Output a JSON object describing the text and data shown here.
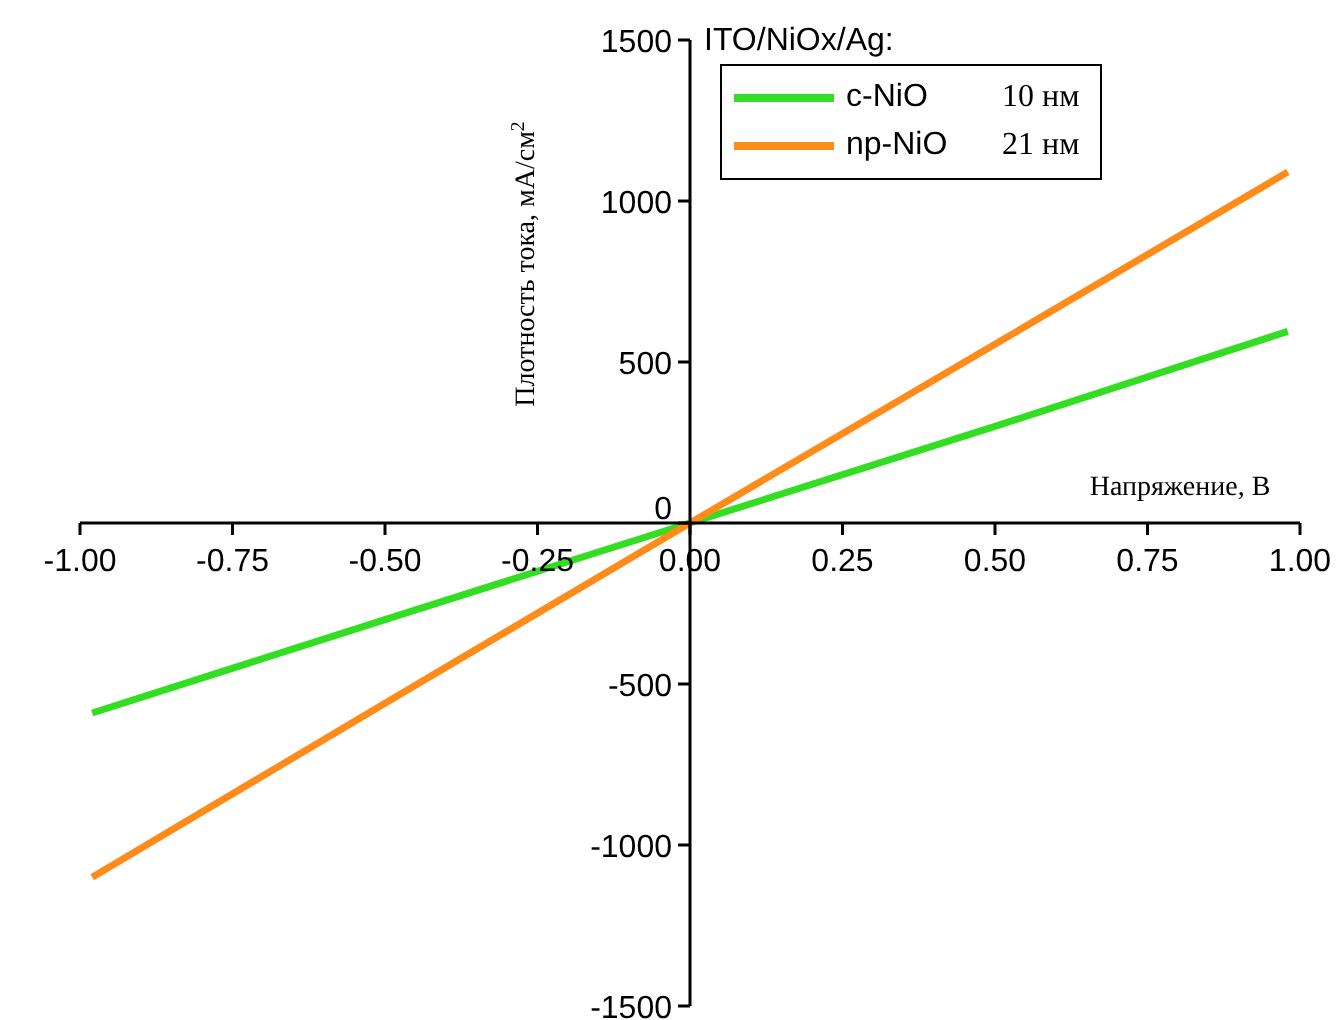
{
  "chart_data": {
    "type": "line",
    "xlabel": "Напряжение, В",
    "ylabel": "Плотность тока, мА/см$^{2}$",
    "legend_title": "ITO/NiOx/Ag:",
    "legend": "top right",
    "xlim": [
      -1,
      1
    ],
    "xticks": [
      {
        "value": -1,
        "label": "-1.00"
      },
      {
        "value": -0.75,
        "label": "-0.75"
      },
      {
        "value": -0.5,
        "label": "-0.50"
      },
      {
        "value": -0.25,
        "label": "-0.25"
      },
      {
        "value": 0,
        "label": "0.00"
      },
      {
        "value": 0.25,
        "label": "0.25"
      },
      {
        "value": 0.5,
        "label": "0.50"
      },
      {
        "value": 0.75,
        "label": "0.75"
      },
      {
        "value": 1,
        "label": "1.00"
      }
    ],
    "ylim": [
      -1500,
      1500
    ],
    "yticks": [
      -1500,
      -1000,
      -500,
      0,
      500,
      1000,
      1500
    ],
    "x": [
      -0.98,
      -0.5,
      0,
      0.5,
      0.98
    ],
    "series": [
      {
        "name": "c-NiO",
        "color": "#33dd22",
        "values": [
          -590,
          -300,
          0,
          300,
          595
        ]
      },
      {
        "name": "np-NiO",
        "color": "#ff8c1a",
        "values": [
          -1100,
          -560,
          0,
          555,
          1090
        ]
      }
    ],
    "annotations": [
      "10 нм",
      "21 нм"
    ]
  }
}
